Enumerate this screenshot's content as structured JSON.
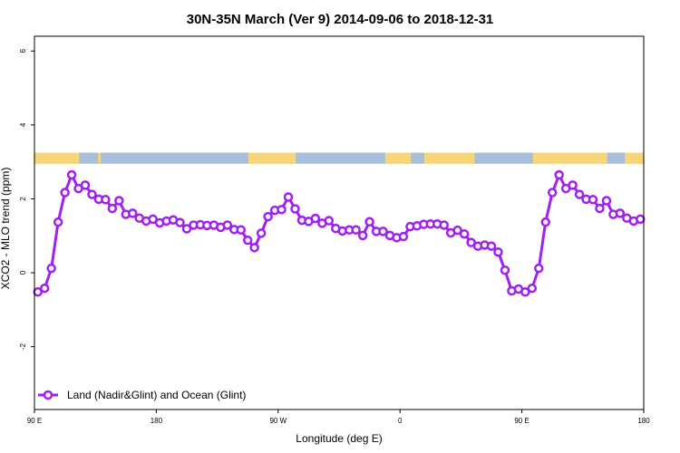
{
  "chart_data": {
    "type": "line",
    "title": "30N-35N March (Ver 9)   2014-09-06 to 2018-12-31",
    "xlabel": "Longitude (deg E)",
    "ylabel": "XCO2 - MLO trend (ppm)",
    "xlim": [
      90,
      540
    ],
    "ylim": [
      -3.7,
      6.4
    ],
    "x_ticks": [
      {
        "value": 90,
        "label": "90 E"
      },
      {
        "value": 180,
        "label": "180"
      },
      {
        "value": 270,
        "label": "90 W"
      },
      {
        "value": 360,
        "label": "0"
      },
      {
        "value": 450,
        "label": "90 E"
      },
      {
        "value": 540,
        "label": "180"
      }
    ],
    "y_ticks": [
      {
        "value": -2,
        "label": "-2"
      },
      {
        "value": 0,
        "label": "0"
      },
      {
        "value": 2,
        "label": "2"
      },
      {
        "value": 4,
        "label": "4"
      },
      {
        "value": 6,
        "label": "6"
      }
    ],
    "surface_band": {
      "y_range": [
        2.95,
        3.25
      ],
      "land_color": "#F7D67A",
      "ocean_color": "#A9BEDB",
      "land_segments": [
        [
          90,
          123
        ],
        [
          137,
          139
        ],
        [
          248,
          283
        ],
        [
          349,
          368
        ],
        [
          378,
          415
        ],
        [
          458,
          513
        ],
        [
          526,
          540
        ]
      ]
    },
    "legend": {
      "position": "bottom-left"
    },
    "series": [
      {
        "name": "Land (Nadir&Glint) and Ocean (Glint)",
        "color": "#A020F0",
        "x": [
          92.5,
          97.5,
          102.5,
          107.5,
          112.5,
          117.5,
          122.5,
          127.5,
          132.5,
          137.5,
          142.5,
          147.5,
          152.5,
          157.5,
          162.5,
          167.5,
          172.5,
          177.5,
          182.5,
          187.5,
          192.5,
          197.5,
          202.5,
          207.5,
          212.5,
          217.5,
          222.5,
          227.5,
          232.5,
          237.5,
          242.5,
          247.5,
          252.5,
          257.5,
          262.5,
          267.5,
          272.5,
          277.5,
          282.5,
          287.5,
          292.5,
          297.5,
          302.5,
          307.5,
          312.5,
          317.5,
          322.5,
          327.5,
          332.5,
          337.5,
          342.5,
          347.5,
          352.5,
          357.5,
          362.5,
          367.5,
          372.5,
          377.5,
          382.5,
          387.5,
          392.5,
          397.5,
          402.5,
          407.5,
          412.5,
          417.5,
          422.5,
          427.5,
          432.5,
          437.5,
          442.5,
          447.5,
          452.5,
          457.5,
          462.5,
          467.5,
          472.5,
          477.5,
          482.5,
          487.5,
          492.5,
          497.5,
          502.5,
          507.5,
          512.5,
          517.5,
          522.5,
          527.5,
          532.5,
          537.5
        ],
        "y": [
          -0.52,
          -0.42,
          0.12,
          1.37,
          2.17,
          2.65,
          2.28,
          2.37,
          2.12,
          1.99,
          1.98,
          1.74,
          1.95,
          1.58,
          1.61,
          1.48,
          1.4,
          1.45,
          1.35,
          1.4,
          1.43,
          1.36,
          1.19,
          1.29,
          1.3,
          1.28,
          1.29,
          1.23,
          1.29,
          1.17,
          1.16,
          0.88,
          0.68,
          1.07,
          1.52,
          1.69,
          1.71,
          2.05,
          1.73,
          1.42,
          1.39,
          1.47,
          1.34,
          1.41,
          1.2,
          1.13,
          1.16,
          1.16,
          1.01,
          1.38,
          1.12,
          1.12,
          1.01,
          0.95,
          0.98,
          1.25,
          1.27,
          1.31,
          1.32,
          1.32,
          1.29,
          1.08,
          1.15,
          1.05,
          0.82,
          0.72,
          0.75,
          0.72,
          0.56,
          0.07,
          -0.49,
          -0.44,
          -0.52,
          -0.42,
          0.12,
          1.37,
          2.17,
          2.65,
          2.28,
          2.37,
          2.12,
          1.99,
          1.98,
          1.74,
          1.95,
          1.58,
          1.61,
          1.48,
          1.4,
          1.45
        ]
      }
    ]
  }
}
